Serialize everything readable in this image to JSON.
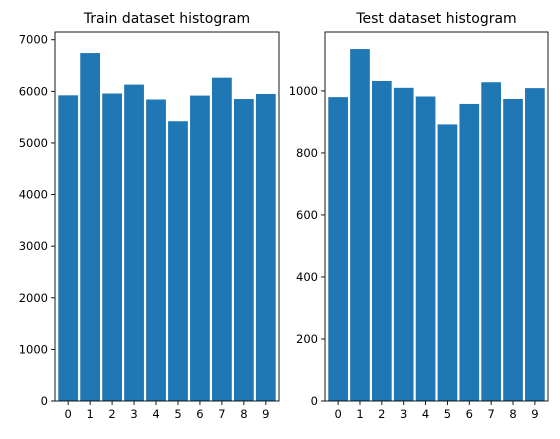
{
  "chart_data": [
    {
      "type": "bar",
      "title": "Train dataset histogram",
      "xlabel": "",
      "ylabel": "",
      "categories": [
        "0",
        "1",
        "2",
        "3",
        "4",
        "5",
        "6",
        "7",
        "8",
        "9"
      ],
      "values": [
        5923,
        6742,
        5958,
        6131,
        5842,
        5421,
        5918,
        6265,
        5851,
        5949
      ],
      "ylim": [
        0,
        7150
      ],
      "yticks": [
        0,
        1000,
        2000,
        3000,
        4000,
        5000,
        6000,
        7000
      ],
      "grid": false,
      "legend": "none",
      "bar_color": "#1f77b4"
    },
    {
      "type": "bar",
      "title": "Test dataset histogram",
      "xlabel": "",
      "ylabel": "",
      "categories": [
        "0",
        "1",
        "2",
        "3",
        "4",
        "5",
        "6",
        "7",
        "8",
        "9"
      ],
      "values": [
        980,
        1135,
        1032,
        1010,
        982,
        892,
        958,
        1028,
        974,
        1009
      ],
      "ylim": [
        0,
        1190
      ],
      "yticks": [
        0,
        200,
        400,
        600,
        800,
        1000
      ],
      "grid": false,
      "legend": "none",
      "bar_color": "#1f77b4"
    }
  ]
}
